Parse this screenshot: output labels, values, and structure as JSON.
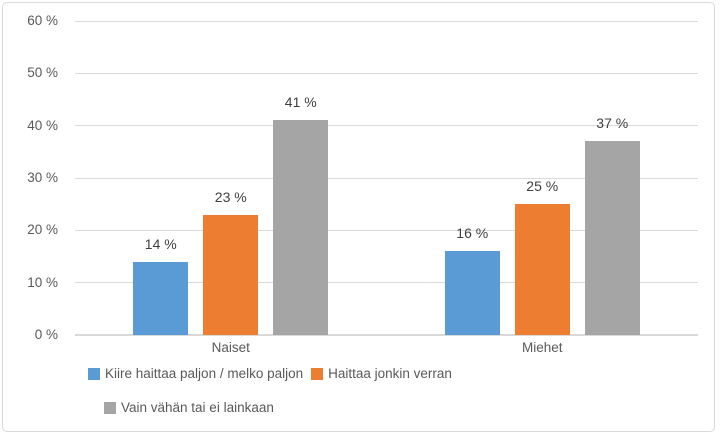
{
  "chart_data": {
    "type": "bar",
    "title": "",
    "xlabel": "",
    "ylabel": "",
    "categories": [
      "Naiset",
      "Miehet"
    ],
    "series": [
      {
        "name": "Kiire haittaa paljon / melko paljon",
        "color": "#5B9BD5",
        "values": [
          14,
          16
        ],
        "labels": [
          "14 %",
          "16 %"
        ]
      },
      {
        "name": "Haittaa jonkin verran",
        "color": "#ED7D31",
        "values": [
          23,
          25
        ],
        "labels": [
          "23 %",
          "25 %"
        ]
      },
      {
        "name": "Vain vähän tai ei lainkaan",
        "color": "#A5A5A5",
        "values": [
          41,
          37
        ],
        "labels": [
          "41 %",
          "37 %"
        ]
      }
    ],
    "ylim": [
      0,
      60
    ],
    "yticks": [
      {
        "value": 0,
        "label": "0 %"
      },
      {
        "value": 10,
        "label": "10 %"
      },
      {
        "value": 20,
        "label": "20 %"
      },
      {
        "value": 30,
        "label": "30 %"
      },
      {
        "value": 40,
        "label": "40 %"
      },
      {
        "value": 50,
        "label": "50 %"
      },
      {
        "value": 60,
        "label": "60 %"
      }
    ],
    "grid": "horizontal",
    "legend_position": "bottom",
    "legend_rows": [
      [
        0,
        1
      ],
      [
        2
      ]
    ],
    "colors": {
      "grid": "#D9D9D9",
      "border": "#D9D9D9",
      "axis_text": "#595959",
      "value_label_text": "#404040"
    }
  }
}
